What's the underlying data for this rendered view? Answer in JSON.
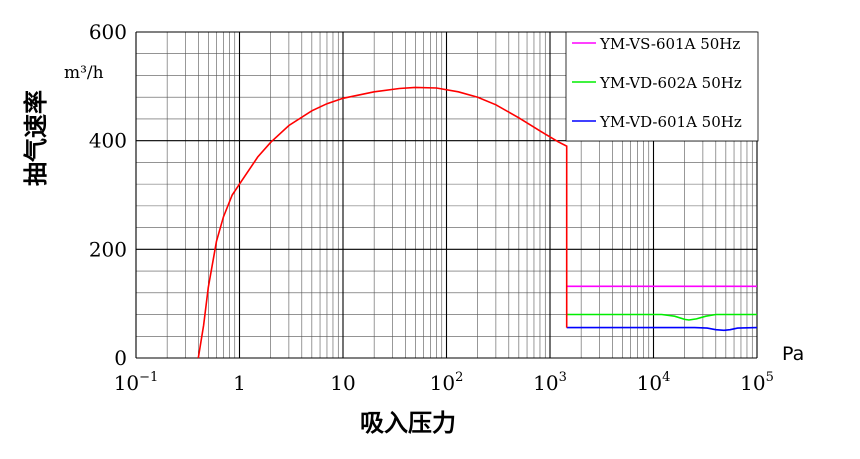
{
  "chart_data": {
    "type": "line",
    "xlabel": "吸入压力",
    "ylabel": "抽气速率",
    "ylabel_unit": "m³/h",
    "x_unit": "Pa",
    "x_scale": "log",
    "xlim": [
      0.1,
      100000
    ],
    "ylim": [
      0,
      600
    ],
    "grid": true,
    "legend_position": "top-right",
    "x_ticks": [
      {
        "base": "10",
        "exp": "−1"
      },
      {
        "base": "1",
        "exp": ""
      },
      {
        "base": "10",
        "exp": ""
      },
      {
        "base": "10",
        "exp": "2"
      },
      {
        "base": "10",
        "exp": "3"
      },
      {
        "base": "10",
        "exp": "4"
      },
      {
        "base": "10",
        "exp": "5"
      }
    ],
    "y_ticks": [
      "0",
      "200",
      "400",
      "600"
    ],
    "series": [
      {
        "name": "YM-VS-601A  50Hz",
        "color": "#ff00ff",
        "points": [
          [
            1450,
            132
          ],
          [
            100000,
            132
          ]
        ]
      },
      {
        "name": "YM-VD-602A  50Hz",
        "color": "#00ee00",
        "points": [
          [
            1450,
            80
          ],
          [
            12000,
            80
          ],
          [
            16000,
            77
          ],
          [
            20000,
            71
          ],
          [
            22000,
            70
          ],
          [
            26000,
            72
          ],
          [
            32000,
            77
          ],
          [
            40000,
            80
          ],
          [
            100000,
            80
          ]
        ]
      },
      {
        "name": "YM-VD-601A  50Hz",
        "color": "#0000ff",
        "points": [
          [
            1450,
            56
          ],
          [
            25000,
            56
          ],
          [
            33000,
            55
          ],
          [
            40000,
            52
          ],
          [
            48000,
            51
          ],
          [
            55000,
            52
          ],
          [
            65000,
            55
          ],
          [
            100000,
            56
          ]
        ]
      }
    ],
    "shared_curve": {
      "color": "#ff0000",
      "points": [
        [
          0.4,
          0
        ],
        [
          0.45,
          60
        ],
        [
          0.5,
          130
        ],
        [
          0.6,
          215
        ],
        [
          0.7,
          260
        ],
        [
          0.85,
          300
        ],
        [
          1.0,
          320
        ],
        [
          1.5,
          370
        ],
        [
          2,
          397
        ],
        [
          3,
          428
        ],
        [
          5,
          455
        ],
        [
          7,
          468
        ],
        [
          10,
          478
        ],
        [
          20,
          490
        ],
        [
          35,
          496
        ],
        [
          50,
          498
        ],
        [
          80,
          497
        ],
        [
          130,
          490
        ],
        [
          200,
          480
        ],
        [
          300,
          466
        ],
        [
          500,
          442
        ],
        [
          800,
          418
        ],
        [
          1200,
          398
        ],
        [
          1450,
          390
        ],
        [
          1450,
          56
        ]
      ]
    }
  }
}
